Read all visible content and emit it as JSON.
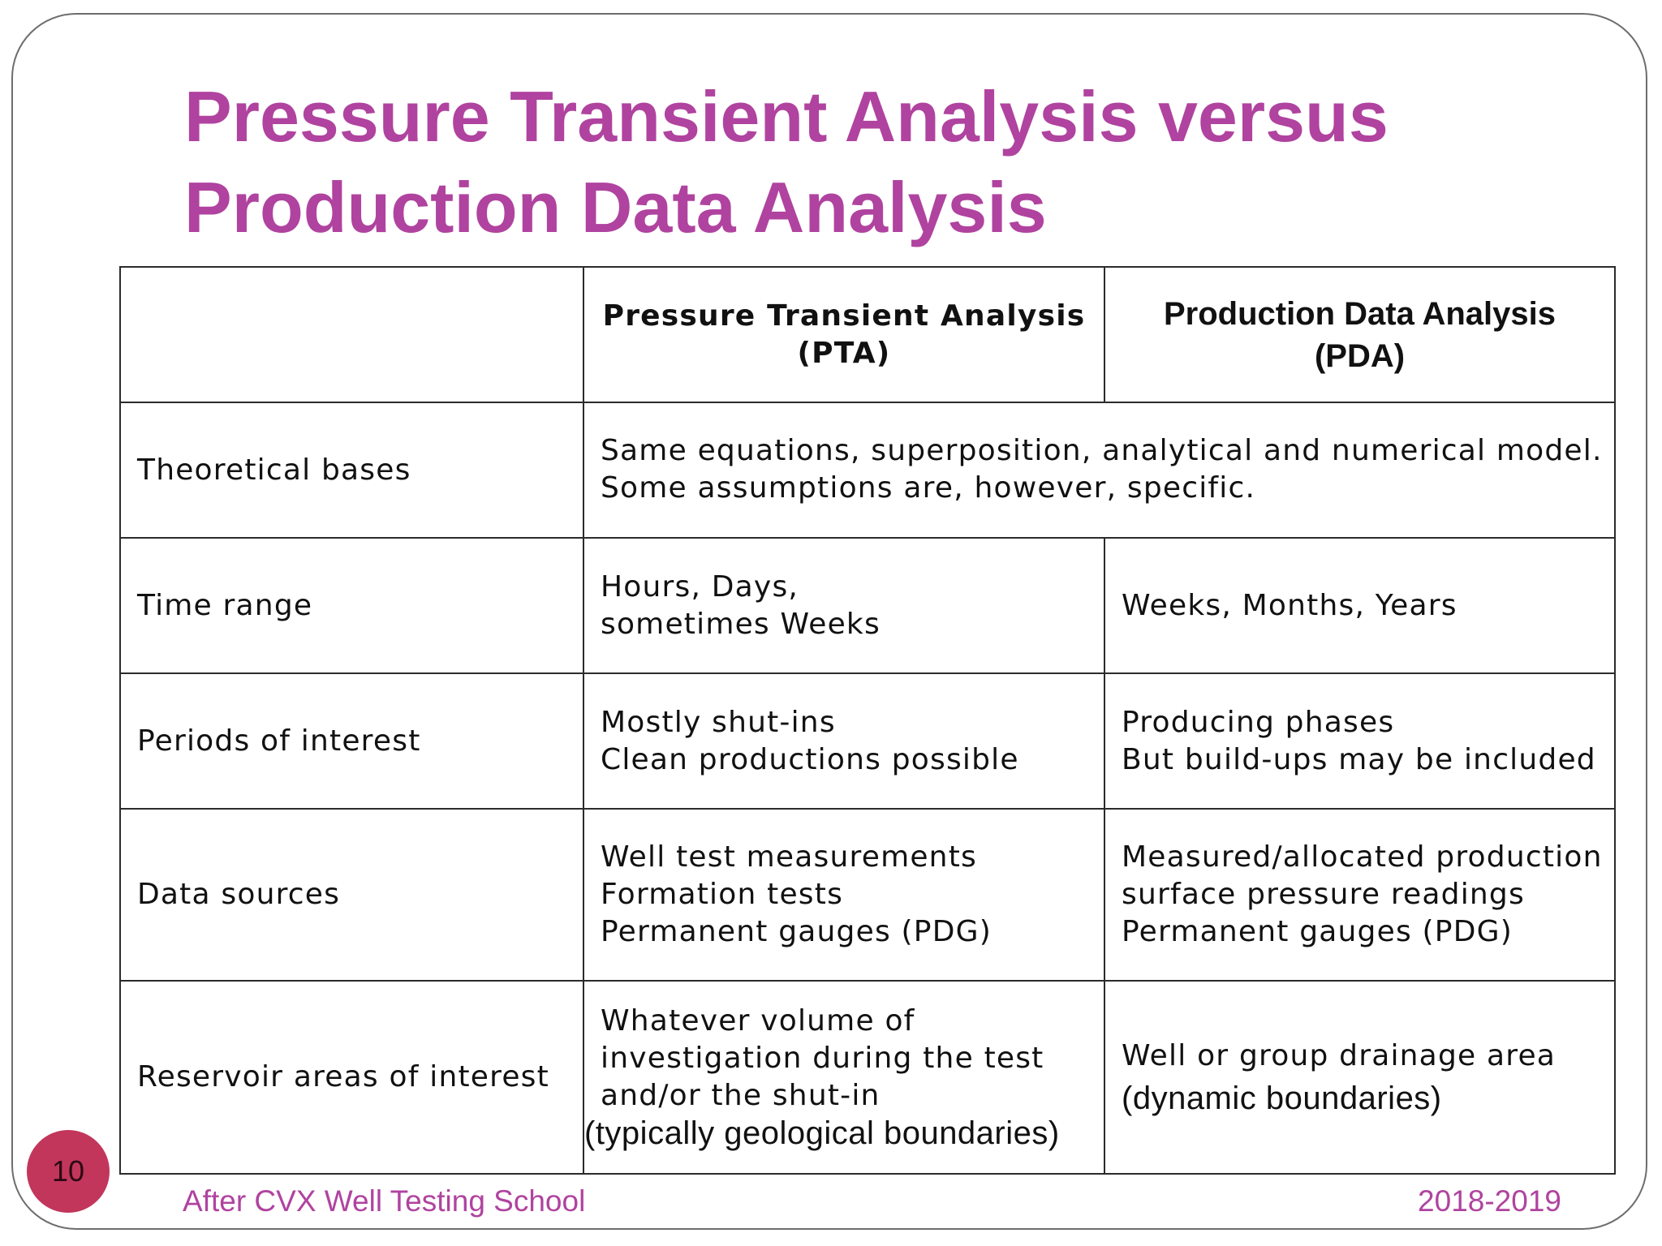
{
  "slide": {
    "title_line1": "Pressure Transient Analysis versus",
    "title_line2": "Production Data Analysis",
    "page_number": "10",
    "footer_left": "After CVX Well Testing School",
    "footer_right": "2018-2019"
  },
  "table": {
    "header": {
      "pta_line1": "Pressure Transient Analysis",
      "pta_line2": "(PTA)",
      "pda_line1": "Production Data Analysis",
      "pda_line2": "(PDA)"
    },
    "rows": [
      {
        "label": "Theoretical bases",
        "shared_line1": "Same equations, superposition, analytical and numerical model.",
        "shared_line2": "Some assumptions are, however, specific."
      },
      {
        "label": "Time range",
        "pta_line1": "Hours, Days,",
        "pta_line2": "sometimes Weeks",
        "pda_line1": "Weeks, Months, Years"
      },
      {
        "label": "Periods of interest",
        "pta_line1": "Mostly shut-ins",
        "pta_line2": "Clean productions possible",
        "pda_line1": "Producing phases",
        "pda_line2": "But build-ups may be included"
      },
      {
        "label": "Data sources",
        "pta_line1": "Well test measurements",
        "pta_line2": "Formation tests",
        "pta_line3": "Permanent gauges (PDG)",
        "pda_line1": "Measured/allocated production",
        "pda_line2": "surface pressure readings",
        "pda_line3": "Permanent gauges (PDG)"
      },
      {
        "label": "Reservoir areas of interest",
        "pta_line1": "Whatever volume of",
        "pta_line2": "investigation during the test",
        "pta_line3": "and/or the shut-in",
        "pta_line4": "(typically geological boundaries)",
        "pda_line1": "Well or group drainage area",
        "pda_line2": "(dynamic boundaries)"
      }
    ]
  }
}
